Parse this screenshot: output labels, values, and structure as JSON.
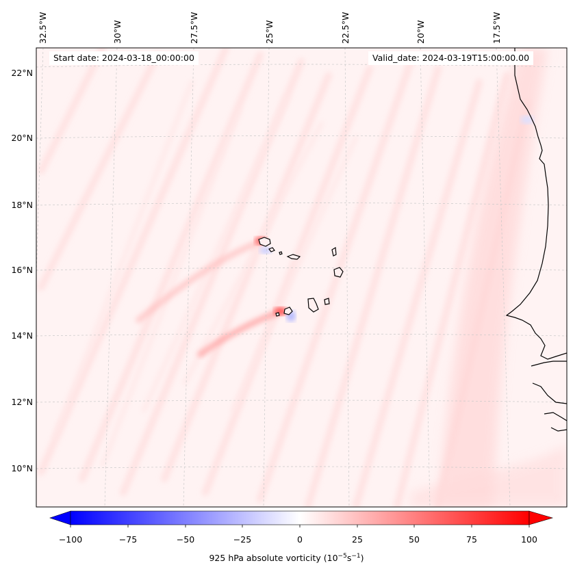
{
  "header": {
    "start_label": "Start date: 2024-03-18_00:00:00",
    "valid_label": "Valid_date: 2024-03-19T15:00:00.00"
  },
  "map": {
    "lat_labels": [
      "22°N",
      "20°N",
      "18°N",
      "16°N",
      "14°N",
      "12°N",
      "10°N"
    ],
    "lon_labels": [
      "32.5°W",
      "30°W",
      "27.5°W",
      "25°W",
      "22.5°W",
      "20°W",
      "17.5°W"
    ]
  },
  "colorbar": {
    "ticks": [
      "−100",
      "−75",
      "−50",
      "−25",
      "0",
      "25",
      "50",
      "75",
      "100"
    ],
    "label_main": "925 hPa absolute vorticity (10",
    "label_exp1": "−5",
    "label_mid": "s",
    "label_exp2": "−1",
    "label_end": ")",
    "colors": {
      "negative": "#0000ff",
      "zero": "#ffffff",
      "positive": "#ff0000"
    }
  }
}
